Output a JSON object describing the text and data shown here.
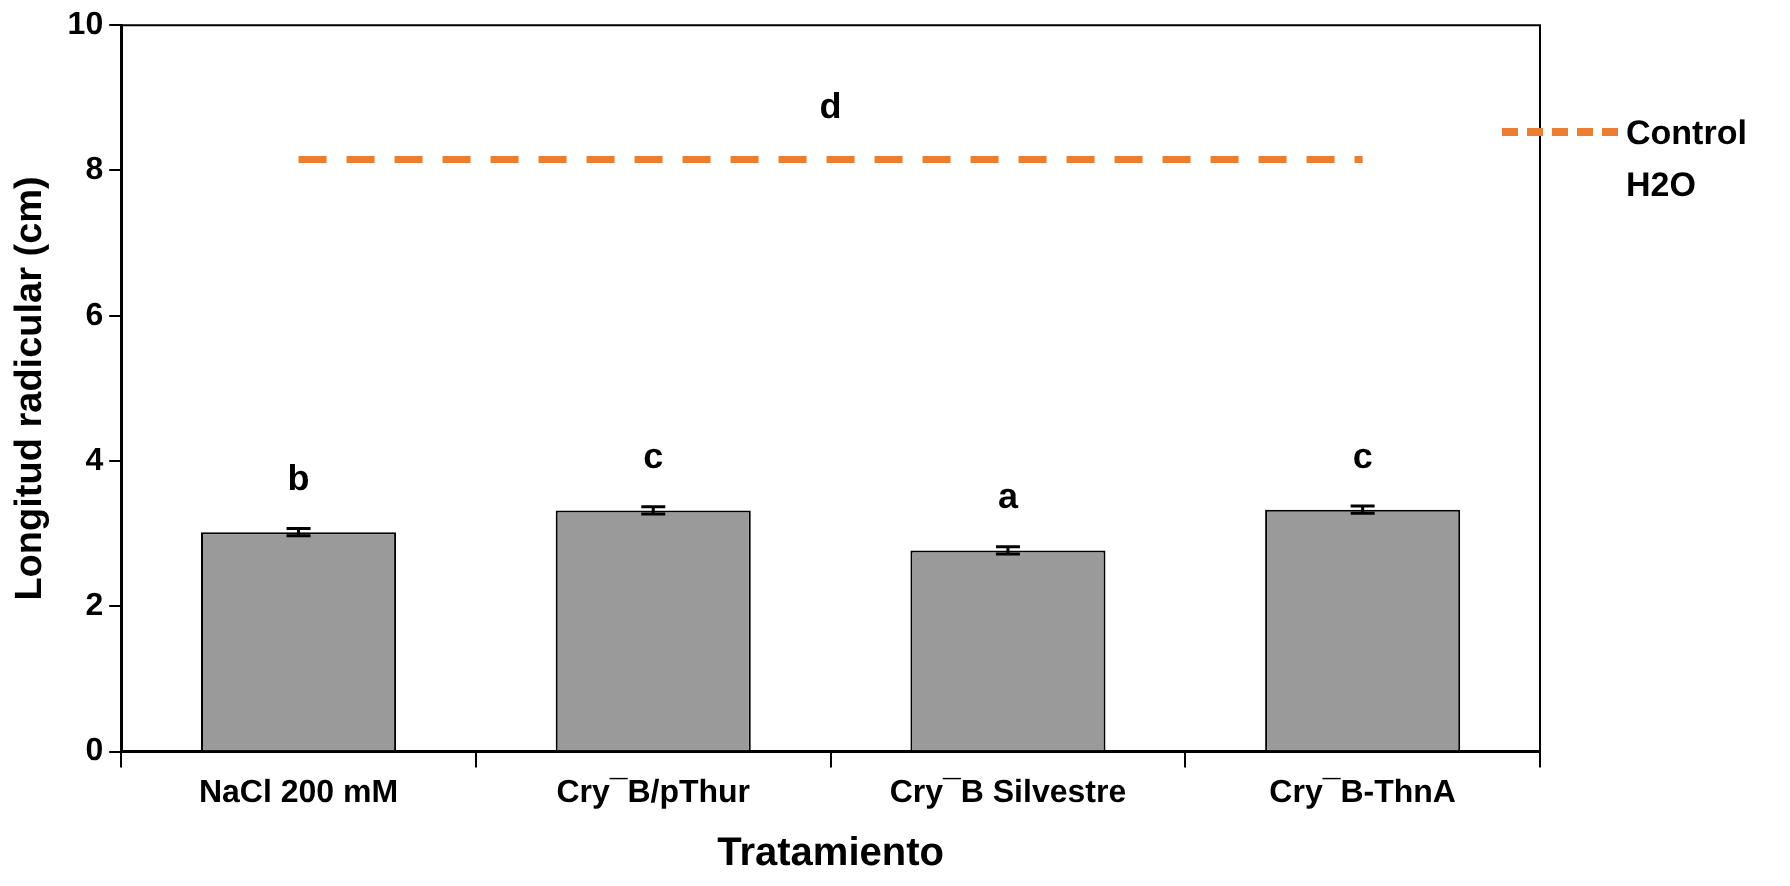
{
  "chart_data": {
    "type": "bar",
    "xlabel": "Tratamiento",
    "ylabel": "Longitud radicular (cm)",
    "categories": [
      "NaCl 200 mM",
      "Cry¯B/pThur",
      "Cry¯B Silvestre",
      "Cry¯B-ThnA"
    ],
    "series": [
      {
        "color": "#9a9a9a",
        "values": [
          3.02,
          3.32,
          2.77,
          3.33
        ],
        "errors": [
          0.05,
          0.05,
          0.05,
          0.05
        ]
      },
      {
        "type": "line",
        "name": "Control H2O",
        "color": "#ed7d31",
        "values": [
          8.15,
          8.15,
          8.15,
          8.15
        ],
        "line_style": "dashed",
        "marker": "none"
      }
    ],
    "ylim": [
      0,
      10
    ],
    "yticks": [
      0,
      2,
      4,
      6,
      8,
      10
    ],
    "grid": false,
    "legend": "top right",
    "annotations": [
      {
        "text": "b",
        "x": "NaCl 200 mM",
        "y": 3.02
      },
      {
        "text": "c",
        "x": "Cry¯B/pThur",
        "y": 3.32
      },
      {
        "text": "a",
        "x": "Cry¯B Silvestre",
        "y": 2.77
      },
      {
        "text": "c",
        "x": "Cry¯B-ThnA",
        "y": 3.33
      },
      {
        "text": "d",
        "y": 8.15
      }
    ]
  }
}
